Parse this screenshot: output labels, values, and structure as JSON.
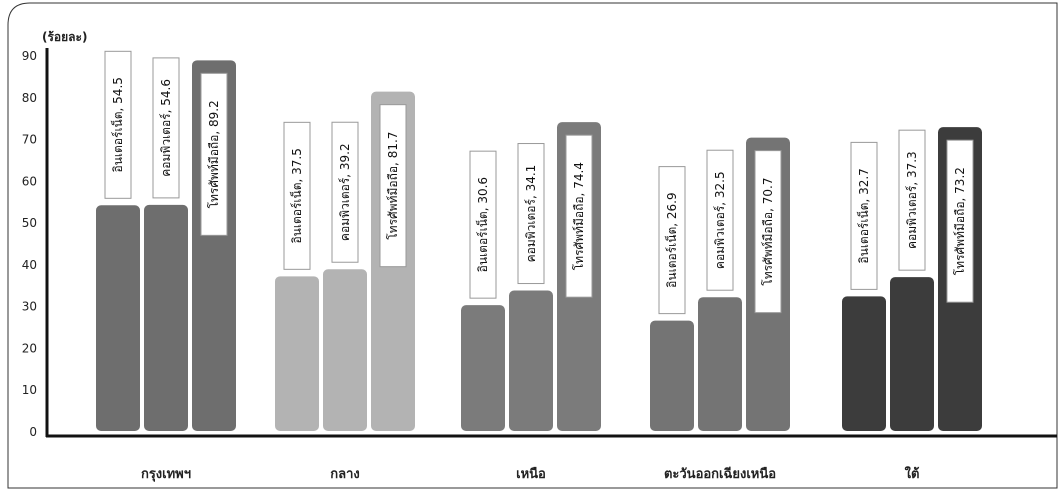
{
  "chart_data": {
    "type": "bar",
    "ylabel": "(ร้อยละ)",
    "ylim": [
      0,
      90
    ],
    "yticks": [
      0,
      10,
      20,
      30,
      40,
      50,
      60,
      70,
      80,
      90
    ],
    "grid": false,
    "categories": [
      "กรุงเทพฯ",
      "กลาง",
      "เหนือ",
      "ตะวันออกเฉียงเหนือ",
      "ใต้"
    ],
    "series": [
      {
        "name": "อินเตอร์เน็ต",
        "values": [
          54.5,
          37.5,
          30.6,
          26.9,
          32.7
        ]
      },
      {
        "name": "คอมพิวเตอร์",
        "values": [
          54.6,
          39.2,
          34.1,
          32.5,
          37.3
        ]
      },
      {
        "name": "โทรศัพท์มือถือ",
        "values": [
          89.2,
          81.7,
          74.4,
          70.7,
          73.2
        ]
      }
    ],
    "data_labels": [
      [
        "อินเตอร์เน็ต, 54.5",
        "คอมพิวเตอร์, 54.6",
        "โทรศัพท์มือถือ, 89.2"
      ],
      [
        "อินเตอร์เน็ต, 37.5",
        "คอมพิวเตอร์, 39.2",
        "โทรศัพท์มือถือ, 81.7"
      ],
      [
        "อินเตอร์เน็ต, 30.6",
        "คอมพิวเตอร์, 34.1",
        "โทรศัพท์มือถือ, 74.4"
      ],
      [
        "อินเตอร์เน็ต, 26.9",
        "คอมพิวเตอร์, 32.5",
        "โทรศัพท์มือถือ, 70.7"
      ],
      [
        "อินเตอร์เน็ต, 32.7",
        "คอมพิวเตอร์, 37.3",
        "โทรศัพท์มือถือ, 73.2"
      ]
    ],
    "category_colors": [
      "#6e6e6e",
      "#b3b3b3",
      "#7b7b7b",
      "#747474",
      "#3c3c3c"
    ]
  }
}
